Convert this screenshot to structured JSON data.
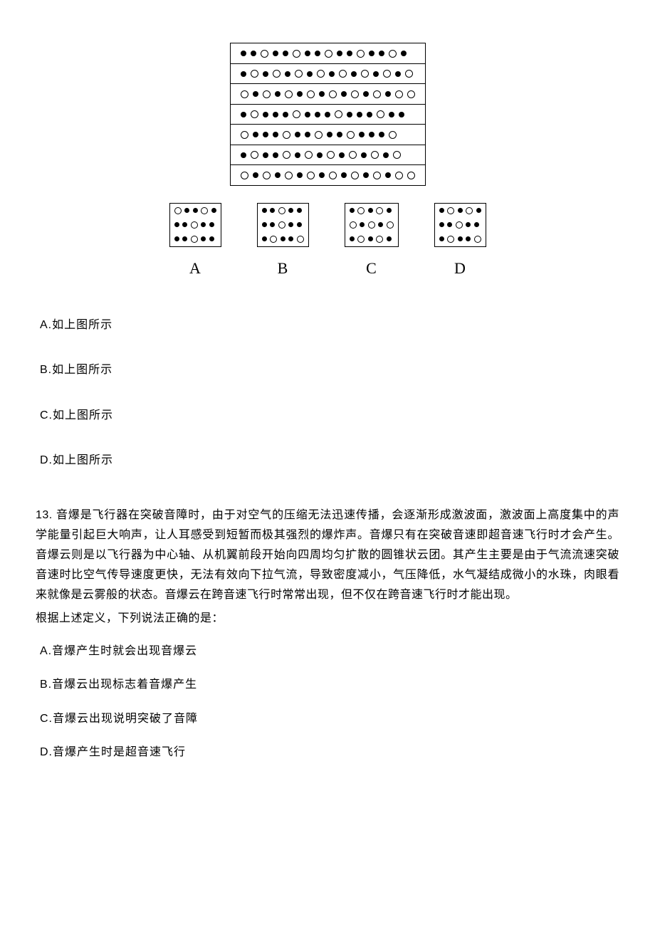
{
  "diagram": {
    "mainGrid": [
      "ffoffoffoffoffof",
      "fofofofofofofofo",
      "ofofofofofofofoo",
      "fofffofffofffoff",
      "offfoffoffofffo",
      "foffofofofofofo",
      "ofofofofofofofoo"
    ],
    "options": [
      {
        "label": "A",
        "rows": [
          "offof",
          "ffoff",
          "ffoff"
        ]
      },
      {
        "label": "B",
        "rows": [
          "ffoff",
          "ffoff",
          "foffo"
        ]
      },
      {
        "label": "C",
        "rows": [
          "fofof",
          "ofofo",
          "fofof"
        ]
      },
      {
        "label": "D",
        "rows": [
          "fofof",
          "ffoff",
          "foffo"
        ]
      }
    ]
  },
  "answerRefs": {
    "a": "A.如上图所示",
    "b": "B.如上图所示",
    "c": "C.如上图所示",
    "d": "D.如上图所示"
  },
  "q13": {
    "number": "13.",
    "passage": "音爆是飞行器在突破音障时，由于对空气的压缩无法迅速传播，会逐渐形成激波面，激波面上高度集中的声学能量引起巨大响声，让人耳感受到短暂而极其强烈的爆炸声。音爆只有在突破音速即超音速飞行时才会产生。音爆云则是以飞行器为中心轴、从机翼前段开始向四周均匀扩散的圆锥状云团。其产生主要是由于气流流速突破音速时比空气传导速度更快，无法有效向下拉气流，导致密度减小，气压降低，水气凝结成微小的水珠，肉眼看来就像是云雾般的状态。音爆云在跨音速飞行时常常出现，但不仅在跨音速飞行时才能出现。",
    "prompt": "根据上述定义，下列说法正确的是：",
    "options": {
      "a": "A.音爆产生时就会出现音爆云",
      "b": "B.音爆云出现标志着音爆产生",
      "c": "C.音爆云出现说明突破了音障",
      "d": "D.音爆产生时是超音速飞行"
    }
  },
  "style": {
    "bg": "#ffffff",
    "text": "#000000",
    "border": "#000000",
    "dotFill": "#000000"
  }
}
